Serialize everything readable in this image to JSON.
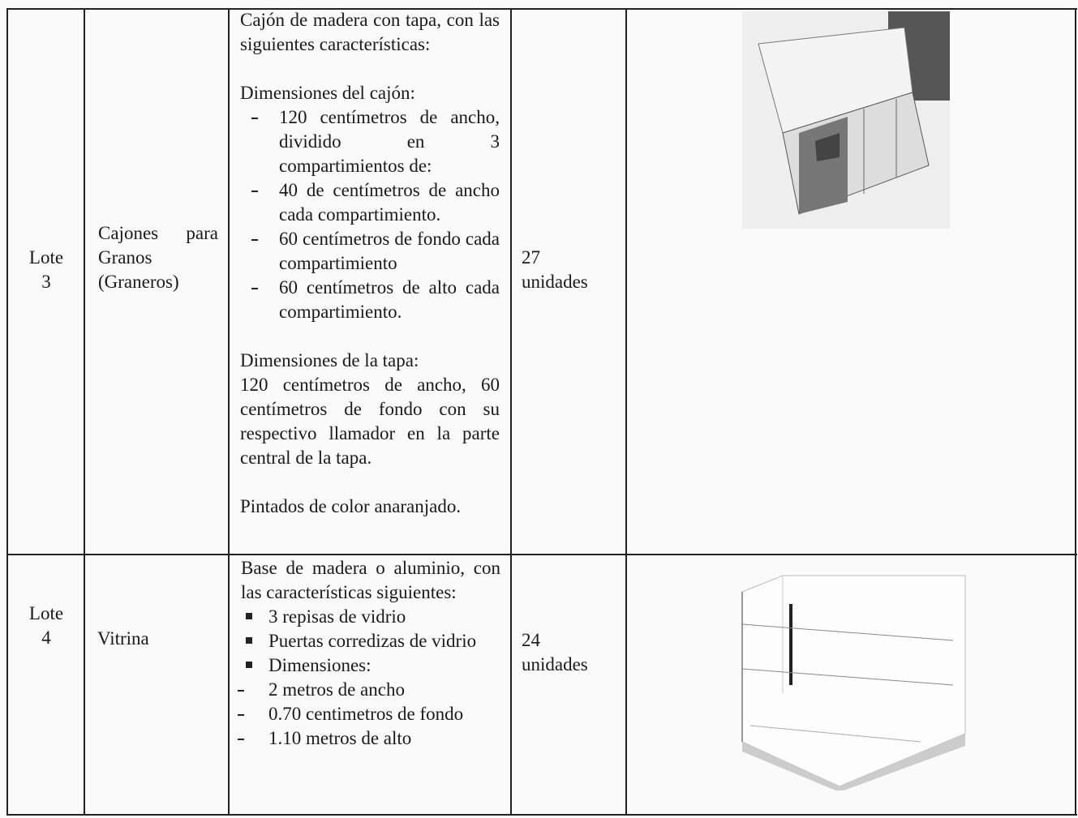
{
  "table": {
    "rows": [
      {
        "lot": "Lote 3",
        "item": "Cajones para Granos (Graneros)",
        "description": {
          "intro": "Cajón de madera con tapa, con las siguientes características:",
          "box_heading": "Dimensiones del cajón:",
          "box_items": [
            "120 centímetros de ancho, dividido en 3 compartimientos de:",
            "40 de centímetros de ancho cada compartimiento.",
            "60 centímetros de fondo cada compartimiento",
            "60 centímetros de alto cada compartimiento."
          ],
          "lid_heading": "Dimensiones de la tapa:",
          "lid_text": "120 centímetros de ancho, 60 centímetros de fondo con su respectivo llamador en la parte central de la tapa.",
          "color": "Pintados de color anaranjado."
        },
        "quantity": "27 unidades"
      },
      {
        "lot": "Lote 4",
        "item": "Vitrina",
        "description": {
          "intro": "Base de madera o aluminio, con las características siguientes:",
          "features": [
            "3 repisas de vidrio",
            "Puertas corredizas de vidrio",
            "Dimensiones:"
          ],
          "dimensions": [
            "2 metros de ancho",
            "0.70 centimetros de fondo",
            "1.10 metros de alto"
          ]
        },
        "quantity": "24 unidades"
      }
    ]
  }
}
